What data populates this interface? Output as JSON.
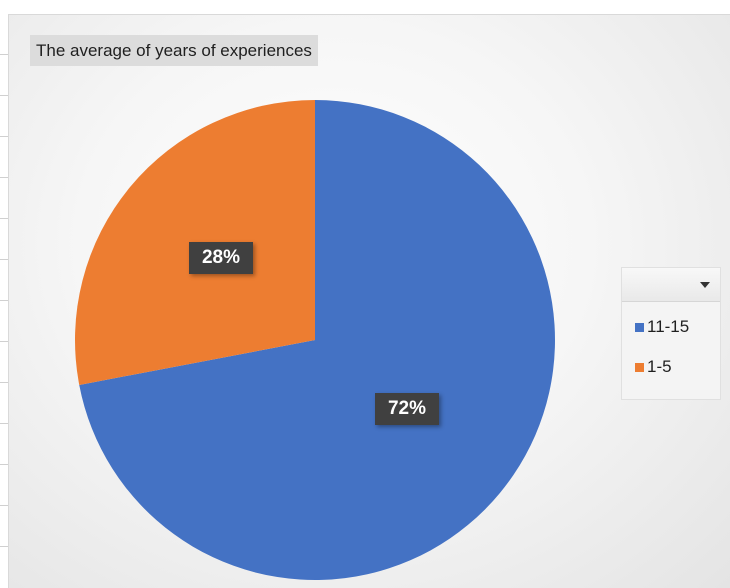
{
  "chart_data": {
    "type": "pie",
    "title": "The average of years of experiences",
    "categories": [
      "11-15",
      "1-5"
    ],
    "values": [
      72,
      28
    ],
    "data_labels": [
      "72%",
      "28%"
    ],
    "colors": [
      "#4472C4",
      "#ED7D31"
    ],
    "legend": {
      "placement": "right",
      "entries": [
        "11-15",
        "1-5"
      ]
    }
  }
}
